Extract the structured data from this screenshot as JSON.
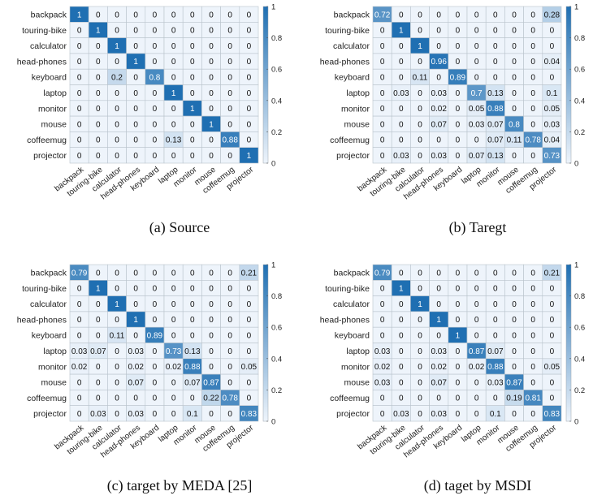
{
  "chart_data": [
    {
      "type": "heatmap",
      "caption": "(a) Source",
      "rows": [
        "backpack",
        "touring-bike",
        "calculator",
        "head-phones",
        "keyboard",
        "laptop",
        "monitor",
        "mouse",
        "coffeemug",
        "projector"
      ],
      "cols": [
        "backpack",
        "touring-bike",
        "calculator",
        "head-phones",
        "keyboard",
        "laptop",
        "monitor",
        "mouse",
        "coffeemug",
        "projector"
      ],
      "values": [
        [
          "1",
          "0",
          "0",
          "0",
          "0",
          "0",
          "0",
          "0",
          "0",
          "0"
        ],
        [
          "0",
          "1",
          "0",
          "0",
          "0",
          "0",
          "0",
          "0",
          "0",
          "0"
        ],
        [
          "0",
          "0",
          "1",
          "0",
          "0",
          "0",
          "0",
          "0",
          "0",
          "0"
        ],
        [
          "0",
          "0",
          "0",
          "1",
          "0",
          "0",
          "0",
          "0",
          "0",
          "0"
        ],
        [
          "0",
          "0",
          "0.2",
          "0",
          "0.8",
          "0",
          "0",
          "0",
          "0",
          "0"
        ],
        [
          "0",
          "0",
          "0",
          "0",
          "0",
          "1",
          "0",
          "0",
          "0",
          "0"
        ],
        [
          "0",
          "0",
          "0",
          "0",
          "0",
          "0",
          "1",
          "0",
          "0",
          "0"
        ],
        [
          "0",
          "0",
          "0",
          "0",
          "0",
          "0",
          "0",
          "1",
          "0",
          "0"
        ],
        [
          "0",
          "0",
          "0",
          "0",
          "0",
          "0.13",
          "0",
          "0",
          "0.88",
          "0"
        ],
        [
          "0",
          "0",
          "0",
          "0",
          "0",
          "0",
          "0",
          "0",
          "0",
          "1"
        ]
      ],
      "colorbar_ticks": [
        "0",
        "0.2",
        "0.4",
        "0.6",
        "0.8",
        "1"
      ]
    },
    {
      "type": "heatmap",
      "caption": "(b) Taregt",
      "rows": [
        "backpack",
        "touring-bike",
        "calculator",
        "head-phones",
        "keyboard",
        "laptop",
        "monitor",
        "mouse",
        "coffeemug",
        "projector"
      ],
      "cols": [
        "backpack",
        "touring-bike",
        "calculator",
        "head-phones",
        "keyboard",
        "laptop",
        "monitor",
        "mouse",
        "coffeemug",
        "projector"
      ],
      "values": [
        [
          "0.72",
          "0",
          "0",
          "0",
          "0",
          "0",
          "0",
          "0",
          "0",
          "0.28"
        ],
        [
          "0",
          "1",
          "0",
          "0",
          "0",
          "0",
          "0",
          "0",
          "0",
          "0"
        ],
        [
          "0",
          "0",
          "1",
          "0",
          "0",
          "0",
          "0",
          "0",
          "0",
          "0"
        ],
        [
          "0",
          "0",
          "0",
          "0.96",
          "0",
          "0",
          "0",
          "0",
          "0",
          "0.04"
        ],
        [
          "0",
          "0",
          "0.11",
          "0",
          "0.89",
          "0",
          "0",
          "0",
          "0",
          "0"
        ],
        [
          "0",
          "0.03",
          "0",
          "0.03",
          "0",
          "0.7",
          "0.13",
          "0",
          "0",
          "0.1"
        ],
        [
          "0",
          "0",
          "0",
          "0.02",
          "0",
          "0.05",
          "0.88",
          "0",
          "0",
          "0.05"
        ],
        [
          "0",
          "0",
          "0",
          "0.07",
          "0",
          "0.03",
          "0.07",
          "0.8",
          "0",
          "0.03"
        ],
        [
          "0",
          "0",
          "0",
          "0",
          "0",
          "0",
          "0.07",
          "0.11",
          "0.78",
          "0.04"
        ],
        [
          "0",
          "0.03",
          "0",
          "0.03",
          "0",
          "0.07",
          "0.13",
          "0",
          "0",
          "0.73"
        ]
      ],
      "colorbar_ticks": [
        "0",
        "0.2",
        "0.4",
        "0.6",
        "0.8",
        "1"
      ]
    },
    {
      "type": "heatmap",
      "caption": "(c) target by MEDA [25]",
      "rows": [
        "backpack",
        "touring-bike",
        "calculator",
        "head-phones",
        "keyboard",
        "laptop",
        "monitor",
        "mouse",
        "coffeemug",
        "projector"
      ],
      "cols": [
        "backpack",
        "touring-bike",
        "calculator",
        "head-phones",
        "keyboard",
        "laptop",
        "monitor",
        "mouse",
        "coffeemug",
        "projector"
      ],
      "values": [
        [
          "0.79",
          "0",
          "0",
          "0",
          "0",
          "0",
          "0",
          "0",
          "0",
          "0.21"
        ],
        [
          "0",
          "1",
          "0",
          "0",
          "0",
          "0",
          "0",
          "0",
          "0",
          "0"
        ],
        [
          "0",
          "0",
          "1",
          "0",
          "0",
          "0",
          "0",
          "0",
          "0",
          "0"
        ],
        [
          "0",
          "0",
          "0",
          "1",
          "0",
          "0",
          "0",
          "0",
          "0",
          "0"
        ],
        [
          "0",
          "0",
          "0.11",
          "0",
          "0.89",
          "0",
          "0",
          "0",
          "0",
          "0"
        ],
        [
          "0.03",
          "0.07",
          "0",
          "0.03",
          "0",
          "0.73",
          "0.13",
          "0",
          "0",
          "0"
        ],
        [
          "0.02",
          "0",
          "0",
          "0.02",
          "0",
          "0.02",
          "0.88",
          "0",
          "0",
          "0.05"
        ],
        [
          "0",
          "0",
          "0",
          "0.07",
          "0",
          "0",
          "0.07",
          "0.87",
          "0",
          "0"
        ],
        [
          "0",
          "0",
          "0",
          "0",
          "0",
          "0",
          "0",
          "0.22",
          "0.78",
          "0"
        ],
        [
          "0",
          "0.03",
          "0",
          "0.03",
          "0",
          "0",
          "0.1",
          "0",
          "0",
          "0.83"
        ]
      ],
      "colorbar_ticks": [
        "0",
        "0.2",
        "0.4",
        "0.6",
        "0.8",
        "1"
      ]
    },
    {
      "type": "heatmap",
      "caption": "(d) taget by MSDI",
      "rows": [
        "backpack",
        "touring-bike",
        "calculator",
        "head-phones",
        "keyboard",
        "laptop",
        "monitor",
        "mouse",
        "coffeemug",
        "projector"
      ],
      "cols": [
        "backpack",
        "touring-bike",
        "calculator",
        "head-phones",
        "keyboard",
        "laptop",
        "monitor",
        "mouse",
        "coffeemug",
        "projector"
      ],
      "values": [
        [
          "0.79",
          "0",
          "0",
          "0",
          "0",
          "0",
          "0",
          "0",
          "0",
          "0.21"
        ],
        [
          "0",
          "1",
          "0",
          "0",
          "0",
          "0",
          "0",
          "0",
          "0",
          "0"
        ],
        [
          "0",
          "0",
          "1",
          "0",
          "0",
          "0",
          "0",
          "0",
          "0",
          "0"
        ],
        [
          "0",
          "0",
          "0",
          "1",
          "0",
          "0",
          "0",
          "0",
          "0",
          "0"
        ],
        [
          "0",
          "0",
          "0",
          "0",
          "1",
          "0",
          "0",
          "0",
          "0",
          "0"
        ],
        [
          "0.03",
          "0",
          "0",
          "0.03",
          "0",
          "0.87",
          "0.07",
          "0",
          "0",
          "0"
        ],
        [
          "0.02",
          "0",
          "0",
          "0.02",
          "0",
          "0.02",
          "0.88",
          "0",
          "0",
          "0.05"
        ],
        [
          "0.03",
          "0",
          "0",
          "0.07",
          "0",
          "0",
          "0.03",
          "0.87",
          "0",
          "0"
        ],
        [
          "0",
          "0",
          "0",
          "0",
          "0",
          "0",
          "0",
          "0.19",
          "0.81",
          "0"
        ],
        [
          "0",
          "0.03",
          "0",
          "0.03",
          "0",
          "0",
          "0.1",
          "0",
          "0",
          "0.83"
        ]
      ],
      "colorbar_ticks": [
        "0",
        "0.2",
        "0.4",
        "0.6",
        "0.8",
        "1"
      ]
    }
  ],
  "colors": {
    "low": "#eef4fb",
    "high": "#1f6fb2",
    "grid": "#b9c3cc"
  }
}
